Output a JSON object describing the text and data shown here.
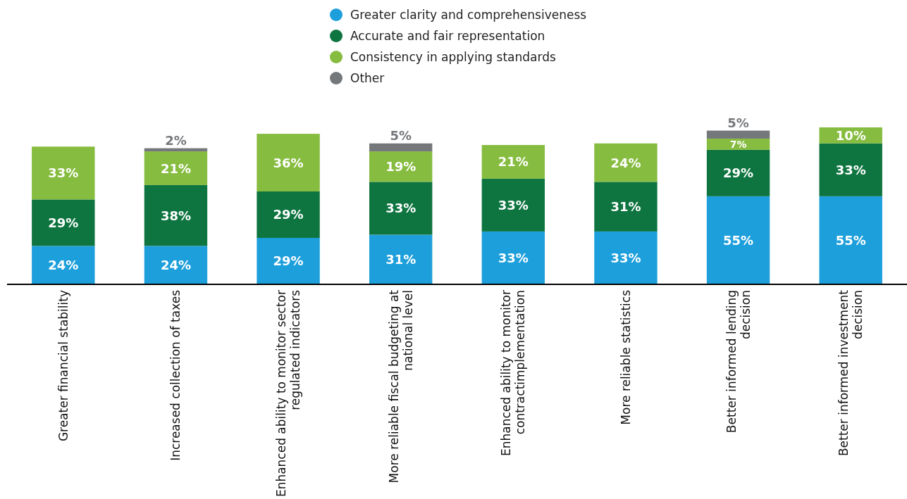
{
  "chart_data": {
    "type": "bar",
    "stacked": true,
    "legend": "top",
    "grid": false,
    "categories": [
      "Greater financial stability",
      "Increased collection of taxes",
      "Enhanced ability to monitor sector\nregulated indicators",
      "More reliable fiscal budgeting at\nnational level",
      "Enhanced ability to monitor\ncontractimplementation",
      "More reliable statistics",
      "Better informed lending\ndecision",
      "Better informed investment\ndecision"
    ],
    "series": [
      {
        "name": "Greater clarity and comprehensiveness",
        "color": "#1d9fdb",
        "values": [
          24,
          24,
          29,
          31,
          33,
          33,
          55,
          55
        ],
        "value_labels": [
          "24%",
          "24%",
          "29%",
          "31%",
          "33%",
          "33%",
          "55%",
          "55%"
        ]
      },
      {
        "name": "Accurate and fair representation",
        "color": "#0e7540",
        "values": [
          29,
          38,
          29,
          33,
          33,
          31,
          29,
          33
        ],
        "value_labels": [
          "29%",
          "38%",
          "29%",
          "33%",
          "33%",
          "31%",
          "29%",
          "33%"
        ]
      },
      {
        "name": "Consistency in applying standards",
        "color": "#86bc3f",
        "values": [
          33,
          21,
          36,
          19,
          21,
          24,
          7,
          10
        ],
        "value_labels": [
          "33%",
          "21%",
          "36%",
          "19%",
          "21%",
          "24%",
          "7%",
          "10%"
        ]
      },
      {
        "name": "Other",
        "color": "#75787b",
        "values": [
          null,
          2,
          null,
          5,
          null,
          null,
          5,
          null
        ],
        "value_labels": [
          null,
          "2%",
          null,
          "5%",
          null,
          null,
          "5%",
          null
        ]
      }
    ]
  }
}
